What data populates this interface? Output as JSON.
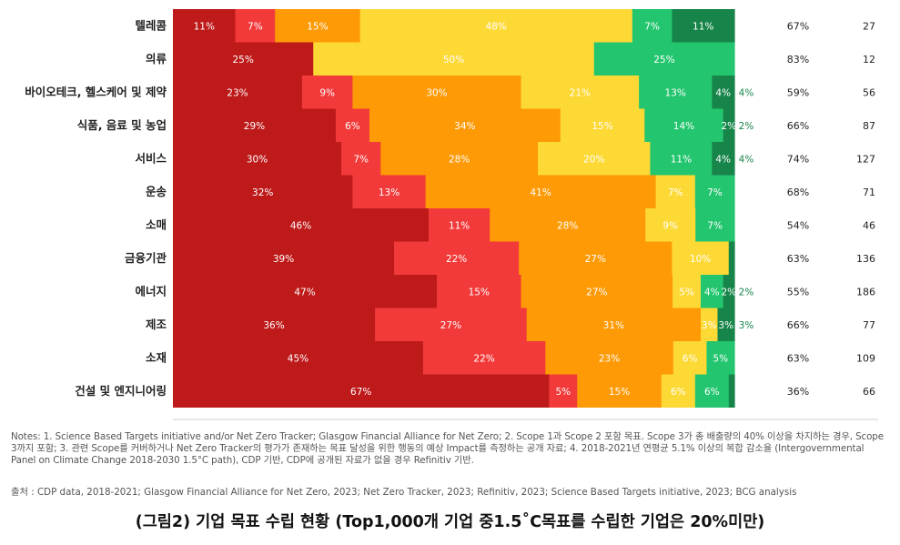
{
  "chart_data": {
    "type": "bar",
    "orientation": "horizontal",
    "stacked": true,
    "categories": [
      "텔레콤",
      "의류",
      "바이오테크, 헬스케어 및 제약",
      "식품, 음료 및 농업",
      "서비스",
      "운송",
      "소매",
      "금융기관",
      "에너지",
      "제조",
      "소재",
      "건설 및 엔지니어링"
    ],
    "series": [
      {
        "color": "#be1a1a",
        "values": [
          11,
          25,
          23,
          29,
          30,
          32,
          46,
          39,
          47,
          36,
          45,
          67
        ]
      },
      {
        "color": "#f33a3a",
        "values": [
          7,
          0,
          9,
          6,
          7,
          13,
          11,
          22,
          15,
          27,
          22,
          5
        ]
      },
      {
        "color": "#fd9a05",
        "values": [
          15,
          0,
          30,
          34,
          28,
          41,
          28,
          27,
          27,
          31,
          23,
          15
        ]
      },
      {
        "color": "#fdd936",
        "values": [
          48,
          50,
          21,
          15,
          20,
          7,
          9,
          10,
          5,
          3,
          6,
          6
        ]
      },
      {
        "color": "#23c56e",
        "values": [
          7,
          25,
          13,
          14,
          11,
          7,
          7,
          0,
          4,
          0,
          5,
          6
        ]
      },
      {
        "color": "#17854a",
        "values": [
          11,
          0,
          4,
          2,
          4,
          0,
          0,
          1,
          2,
          3,
          0,
          1
        ]
      }
    ],
    "labels": [
      [
        "11%",
        "7%",
        "15%",
        "48%",
        "7%",
        "11%"
      ],
      [
        "25%",
        "",
        "",
        "50%",
        "25%",
        ""
      ],
      [
        "23%",
        "9%",
        "30%",
        "21%",
        "13%",
        "4%"
      ],
      [
        "29%",
        "6%",
        "34%",
        "15%",
        "14%",
        "2%"
      ],
      [
        "30%",
        "7%",
        "28%",
        "20%",
        "11%",
        "4%"
      ],
      [
        "32%",
        "13%",
        "41%",
        "7%",
        "7%",
        ""
      ],
      [
        "46%",
        "11%",
        "28%",
        "9%",
        "7%",
        ""
      ],
      [
        "39%",
        "22%",
        "27%",
        "10%",
        "",
        ""
      ],
      [
        "47%",
        "15%",
        "27%",
        "5%",
        "4%",
        "2%"
      ],
      [
        "36%",
        "27%",
        "31%",
        "3%",
        "",
        "3%"
      ],
      [
        "45%",
        "22%",
        "23%",
        "6%",
        "5%",
        ""
      ],
      [
        "67%",
        "5%",
        "15%",
        "6%",
        "6%",
        ""
      ]
    ],
    "outside_labels": [
      "",
      "",
      "4%",
      "2%",
      "4%",
      "",
      "",
      "",
      "2%",
      "3%",
      "",
      ""
    ],
    "right_percent": [
      "67%",
      "83%",
      "59%",
      "66%",
      "74%",
      "68%",
      "54%",
      "63%",
      "55%",
      "66%",
      "63%",
      "36%"
    ],
    "right_count": [
      "27",
      "12",
      "56",
      "87",
      "127",
      "71",
      "46",
      "136",
      "186",
      "77",
      "109",
      "66"
    ],
    "xlim": [
      0,
      100
    ],
    "legend": "none",
    "grid": false
  },
  "notes": "Notes: 1. Science Based Targets initiative and/or Net Zero Tracker; Glasgow Financial Alliance for Net Zero; 2. Scope 1과 Scope 2 포함 목표. Scope 3가 총 배출량의 40% 이상을 차지하는 경우, Scope 3까지 포함; 3. 관련 Scope를 커버하거나 Net Zero Tracker의 평가가 존재하는 목표 달성을 위한 행동의 예상 Impact를 측정하는 공개 자료; 4. 2018-2021년 연평균 5.1% 이상의 복합 감소율 (Intergovernmental Panel on Climate Change 2018-2030 1.5°C path), CDP 기반, CDP에 공개된 자료가 없을 경우 Refinitiv 기반.",
  "source": "출처 : CDP data, 2018-2021; Glasgow Financial Alliance for Net Zero, 2023; Net Zero Tracker, 2023; Refinitiv, 2023; Science Based Targets initiative, 2023; BCG analysis",
  "caption": "(그림2) 기업 목표 수립 현황 (Top1,000개 기업 중1.5˚C목표를 수립한 기업은 20%미만)"
}
